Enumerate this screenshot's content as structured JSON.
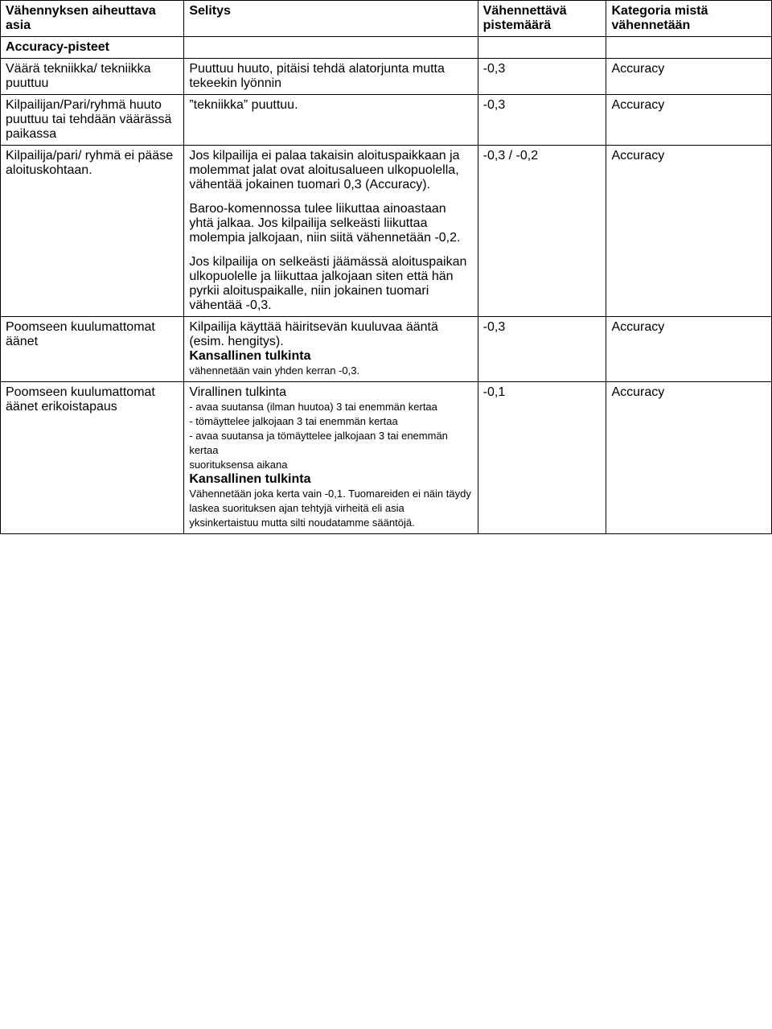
{
  "headers": {
    "col0": "Vähennyksen aiheuttava asia",
    "col1": "Selitys",
    "col2": "Vähennettävä pistemäärä",
    "col3": "Kategoria mistä vähennetään"
  },
  "section_title": "Accuracy-pisteet",
  "rows": [
    {
      "issue": "Väärä tekniikka/ tekniikka puuttuu",
      "explanation": "Puuttuu huuto, pitäisi tehdä alatorjunta mutta tekeekin lyönnin",
      "points": "-0,3",
      "category": "Accuracy"
    },
    {
      "issue": "Kilpailijan/Pari/ryhmä huuto puuttuu tai tehdään väärässä paikassa",
      "explanation": "”tekniikka” puuttuu.",
      "points": "-0,3",
      "category": "Accuracy"
    },
    {
      "issue": "Kilpailija/pari/ ryhmä ei pääse aloituskohtaan.",
      "explanation_p1": "Jos kilpailija ei palaa takaisin aloituspaikkaan ja molemmat jalat ovat aloitusalueen ulkopuolella, vähentää jokainen tuomari 0,3 (Accuracy).",
      "explanation_p2": "Baroo-komennossa tulee liikuttaa ainoastaan yhtä jalkaa. Jos kilpailija selkeästi liikuttaa molempia jalkojaan, niin siitä vähennetään -0,2.",
      "explanation_p3": "Jos kilpailija on selkeästi jäämässä aloituspaikan ulkopuolelle ja liikuttaa jalkojaan siten että hän pyrkii aloituspaikalle, niin jokainen tuomari vähentää -0,3.",
      "points": "-0,3 / -0,2",
      "category": "Accuracy"
    },
    {
      "issue": "Poomseen kuulumattomat äänet",
      "explanation_p1": "Kilpailija käyttää häiritsevän kuuluvaa ääntä (esim. hengitys).",
      "explanation_p2_bold": "Kansallinen tulkinta",
      "explanation_p3_small": "vähennetään vain yhden kerran -0,3.",
      "points": "-0,3",
      "category": "Accuracy"
    },
    {
      "issue": "Poomseen kuulumattomat äänet erikoistapaus",
      "explanation_p1": "Virallinen tulkinta",
      "explanation_p2_small": "- avaa suutansa (ilman huutoa) 3 tai enemmän kertaa",
      "explanation_p3_small": "- tömäyttelee jalkojaan 3 tai enemmän kertaa",
      "explanation_p4_small": "- avaa suutansa ja tömäyttelee jalkojaan 3 tai enemmän kertaa",
      "explanation_p5_small": "suorituksensa aikana",
      "explanation_p6_bold": "Kansallinen tulkinta",
      "explanation_p7_small": "Vähennetään joka kerta vain -0,1. Tuomareiden ei näin täydy laskea suorituksen ajan tehtyjä virheitä eli asia yksinkertaistuu mutta silti noudatamme sääntöjä.",
      "points": "-0,1",
      "category": "Accuracy"
    }
  ]
}
